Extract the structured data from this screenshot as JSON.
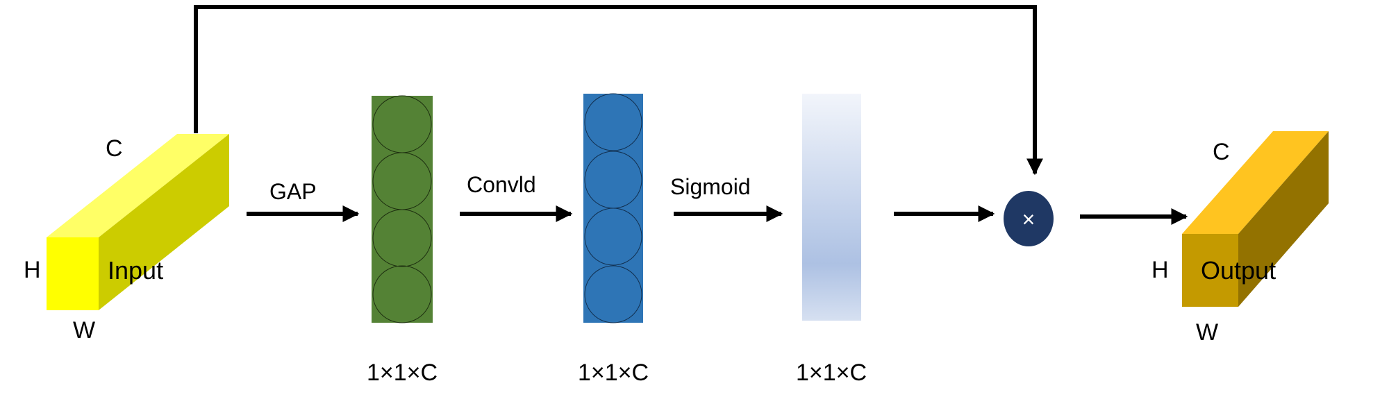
{
  "input_block": {
    "label": "Input",
    "c": "C",
    "h": "H",
    "w": "W"
  },
  "output_block": {
    "label": "Output",
    "c": "C",
    "h": "H",
    "w": "W"
  },
  "steps": [
    {
      "op": "GAP",
      "shape": "1×1×C"
    },
    {
      "op": "Convld",
      "shape": "1×1×C"
    },
    {
      "op": "Sigmoid",
      "shape": "1×1×C"
    }
  ],
  "multiply_symbol": "×",
  "colors": {
    "input_front": "#ffff00",
    "input_top": "#ffff66",
    "input_side": "#cccc00",
    "gap_vector": "#548235",
    "conv_vector": "#2e75b6",
    "sigmoid_light": "#f2f5fb",
    "sigmoid_mid": "#adc1e3",
    "multiply_node": "#1f3864",
    "output_front": "#c49a00",
    "output_top": "#ffc420",
    "output_side": "#937200"
  }
}
